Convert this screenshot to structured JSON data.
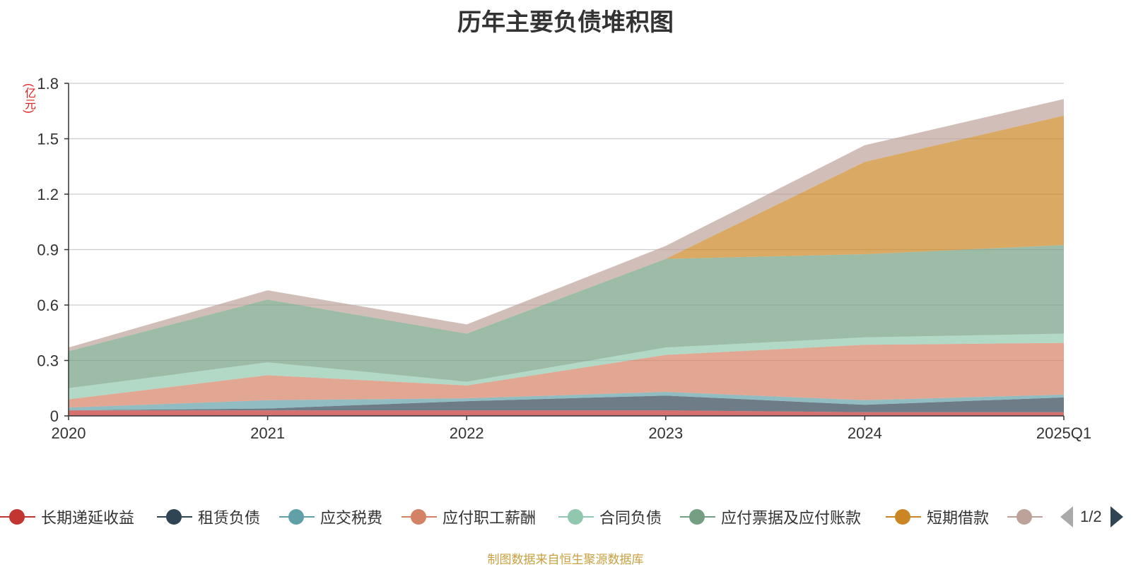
{
  "chart_data": {
    "type": "area",
    "stacked": true,
    "title": "历年主要负债堆积图",
    "ylabel": "(亿元)",
    "ylim": [
      0,
      1.8
    ],
    "yticks": [
      "0",
      "0.3",
      "0.6",
      "0.9",
      "1.2",
      "1.5",
      "1.8"
    ],
    "ytick_values": [
      0,
      0.3,
      0.6,
      0.9,
      1.2,
      1.5,
      1.8
    ],
    "categories": [
      "2020",
      "2021",
      "2022",
      "2023",
      "2024",
      "2025Q1"
    ],
    "grid": true,
    "legend_position": "bottom",
    "series": [
      {
        "name": "长期递延收益",
        "color": "#c23531",
        "values": [
          0.03,
          0.03,
          0.03,
          0.03,
          0.02,
          0.02
        ]
      },
      {
        "name": "租赁负债",
        "color": "#2f4554",
        "values": [
          0.0,
          0.01,
          0.05,
          0.08,
          0.04,
          0.08
        ]
      },
      {
        "name": "应交税费",
        "color": "#61a0a8",
        "values": [
          0.015,
          0.045,
          0.015,
          0.02,
          0.025,
          0.015
        ]
      },
      {
        "name": "应付职工薪酬",
        "color": "#d48265",
        "values": [
          0.045,
          0.135,
          0.07,
          0.2,
          0.3,
          0.28
        ]
      },
      {
        "name": "合同负债",
        "color": "#91c7ae",
        "values": [
          0.06,
          0.07,
          0.02,
          0.04,
          0.04,
          0.05
        ]
      },
      {
        "name": "应付票据及应付账款",
        "color": "#749f83",
        "values": [
          0.2,
          0.34,
          0.26,
          0.48,
          0.45,
          0.48
        ]
      },
      {
        "name": "短期借款",
        "color": "#ca8622",
        "values": [
          0.0,
          0.0,
          0.0,
          0.0,
          0.5,
          0.7
        ]
      },
      {
        "name": "",
        "color": "#bda29a",
        "values": [
          0.02,
          0.05,
          0.05,
          0.07,
          0.09,
          0.09
        ]
      }
    ]
  },
  "legend": {
    "page_indicator": "1/2",
    "prev_icon": "triangle-left-icon",
    "next_icon": "triangle-right-icon"
  },
  "source_note": "制图数据来自恒生聚源数据库"
}
